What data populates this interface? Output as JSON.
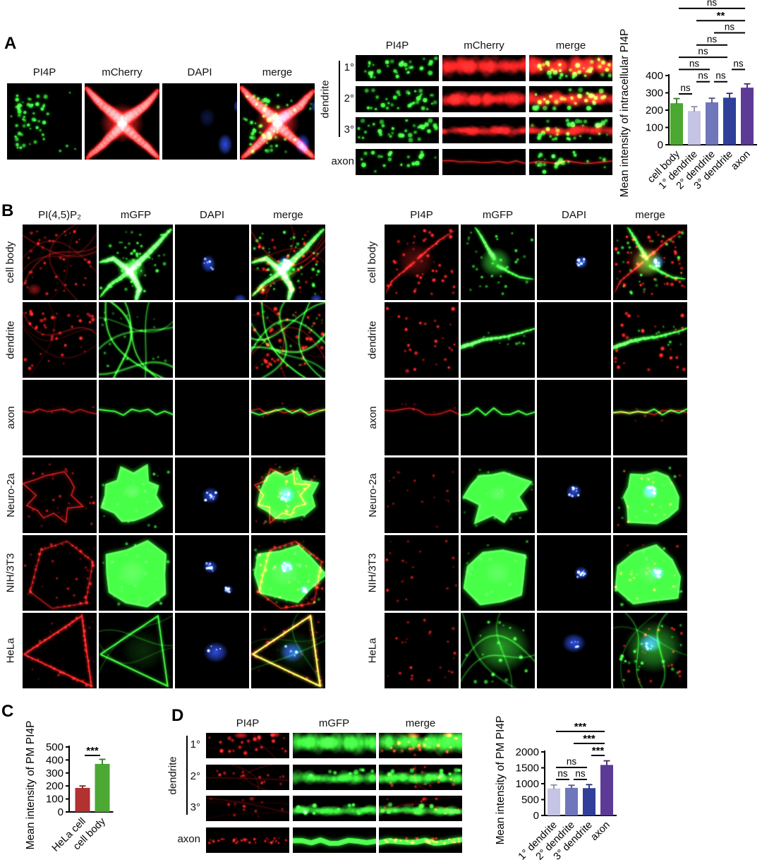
{
  "figure": {
    "panels": {
      "A": {
        "label": "A",
        "cell_columns": [
          "PI4P",
          "mCherry",
          "DAPI",
          "merge"
        ],
        "strip_columns": [
          "PI4P",
          "mCherry",
          "merge"
        ],
        "strip_rows": [
          "1°",
          "2°",
          "3°",
          "axon"
        ],
        "strip_group_label": "dendrite"
      },
      "B": {
        "label": "B",
        "rows": [
          "cell body",
          "dendrite",
          "axon",
          "Neuro-2a",
          "NIH/3T3",
          "HeLa"
        ],
        "left_columns": [
          "PI(4,5)P₂",
          "mGFP",
          "DAPI",
          "merge"
        ],
        "right_columns": [
          "PI4P",
          "mGFP",
          "DAPI",
          "merge"
        ]
      },
      "C": {
        "label": "C"
      },
      "D": {
        "label": "D",
        "strip_columns": [
          "PI4P",
          "mGFP",
          "merge"
        ],
        "strip_rows": [
          "1°",
          "2°",
          "3°",
          "axon"
        ],
        "strip_group_label": "dendrite"
      }
    }
  },
  "chart_data": [
    {
      "type": "bar",
      "panel": "A",
      "title": "",
      "ylabel": "Mean intensity of intracellular PI4P",
      "categories": [
        "cell body",
        "1° dendrite",
        "2° dendrite",
        "3° dendrite",
        "axon"
      ],
      "values": [
        240,
        195,
        245,
        272,
        330
      ],
      "errors": [
        27,
        25,
        24,
        25,
        22
      ],
      "bar_colors": [
        "#4ba832",
        "#c6c4e4",
        "#6f76bb",
        "#2f3f9a",
        "#5c3a96"
      ],
      "ylim": [
        0,
        400
      ],
      "yticks": [
        0,
        100,
        200,
        300,
        400
      ],
      "grid": false,
      "legend": false,
      "significance": [
        {
          "from": 0,
          "to": 1,
          "label": "ns",
          "level": 0
        },
        {
          "from": 1,
          "to": 2,
          "label": "ns",
          "level": 1
        },
        {
          "from": 2,
          "to": 3,
          "label": "ns",
          "level": 1
        },
        {
          "from": 0,
          "to": 2,
          "label": "ns",
          "level": 2
        },
        {
          "from": 3,
          "to": 4,
          "label": "ns",
          "level": 2
        },
        {
          "from": 0,
          "to": 3,
          "label": "ns",
          "level": 3
        },
        {
          "from": 1,
          "to": 3,
          "label": "ns",
          "level": 4
        },
        {
          "from": 2,
          "to": 4,
          "label": "ns",
          "level": 5
        },
        {
          "from": 1,
          "to": 4,
          "label": "**",
          "level": 6
        },
        {
          "from": 0,
          "to": 4,
          "label": "ns",
          "level": 7
        }
      ]
    },
    {
      "type": "bar",
      "panel": "C",
      "title": "",
      "ylabel": "Mean intensity of PM PI4P",
      "categories": [
        "HeLa cell",
        "cell body"
      ],
      "values": [
        185,
        370
      ],
      "errors": [
        15,
        35
      ],
      "bar_colors": [
        "#b23131",
        "#4ba832"
      ],
      "ylim": [
        0,
        500
      ],
      "yticks": [
        0,
        100,
        200,
        300,
        400,
        500
      ],
      "grid": false,
      "legend": false,
      "significance": [
        {
          "from": 0,
          "to": 1,
          "label": "***",
          "level": 0
        }
      ]
    },
    {
      "type": "bar",
      "panel": "D",
      "title": "",
      "ylabel": "Mean intensity of PM PI4P",
      "categories": [
        "1° dendrite",
        "2° dendrite",
        "3° dendrite",
        "axon"
      ],
      "values": [
        850,
        870,
        860,
        1590
      ],
      "errors": [
        110,
        80,
        110,
        130
      ],
      "bar_colors": [
        "#c6c4e4",
        "#6f76bb",
        "#2f3f9a",
        "#5c3a96"
      ],
      "ylim": [
        0,
        2000
      ],
      "yticks": [
        0,
        500,
        1000,
        1500,
        2000
      ],
      "grid": false,
      "legend": false,
      "significance": [
        {
          "from": 0,
          "to": 1,
          "label": "ns",
          "level": 0
        },
        {
          "from": 1,
          "to": 2,
          "label": "ns",
          "level": 0
        },
        {
          "from": 0,
          "to": 2,
          "label": "ns",
          "level": 1
        },
        {
          "from": 2,
          "to": 3,
          "label": "***",
          "level": 2
        },
        {
          "from": 1,
          "to": 3,
          "label": "***",
          "level": 3
        },
        {
          "from": 0,
          "to": 3,
          "label": "***",
          "level": 4
        }
      ]
    }
  ]
}
